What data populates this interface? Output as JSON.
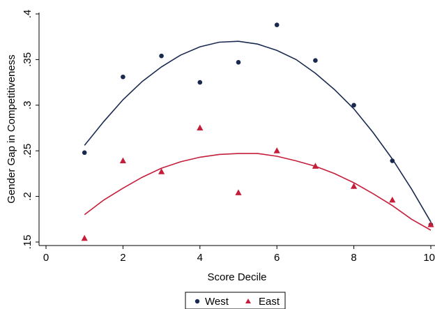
{
  "chart_data": {
    "type": "scatter",
    "title": "",
    "xlabel": "Score Decile",
    "ylabel": "Gender Gap in Competitiveness",
    "xlim": [
      0,
      10
    ],
    "ylim": [
      0.15,
      0.4
    ],
    "xticks": [
      0,
      2,
      4,
      6,
      8,
      10
    ],
    "xtick_labels": [
      "0",
      "2",
      "4",
      "6",
      "8",
      "10"
    ],
    "yticks": [
      0.15,
      0.2,
      0.25,
      0.3,
      0.35,
      0.4
    ],
    "ytick_labels": [
      ".15",
      ".2",
      ".25",
      ".3",
      ".35",
      ".4"
    ],
    "grid": false,
    "legend_position": "bottom",
    "series": [
      {
        "name": "West",
        "marker": "circle",
        "color": "#1a2a4f",
        "x": [
          1,
          2,
          3,
          4,
          5,
          6,
          7,
          8,
          9,
          10
        ],
        "y": [
          0.248,
          0.331,
          0.354,
          0.325,
          0.347,
          0.388,
          0.349,
          0.3,
          0.239,
          0.169
        ],
        "fit": {
          "type": "quadratic",
          "x": [
            1,
            1.5,
            2,
            2.5,
            3,
            3.5,
            4,
            4.5,
            5,
            5.5,
            6,
            6.5,
            7,
            7.5,
            8,
            8.5,
            9,
            9.5,
            10
          ],
          "y": [
            0.256,
            0.282,
            0.306,
            0.326,
            0.342,
            0.355,
            0.364,
            0.369,
            0.37,
            0.367,
            0.36,
            0.35,
            0.335,
            0.317,
            0.296,
            0.27,
            0.241,
            0.208,
            0.172
          ]
        }
      },
      {
        "name": "East",
        "marker": "triangle",
        "color": "#c41e3a",
        "x": [
          1,
          2,
          3,
          4,
          5,
          6,
          7,
          8,
          9,
          10
        ],
        "y": [
          0.154,
          0.239,
          0.227,
          0.275,
          0.204,
          0.25,
          0.233,
          0.211,
          0.196,
          0.169
        ],
        "fit": {
          "type": "quadratic",
          "x": [
            1,
            1.5,
            2,
            2.5,
            3,
            3.5,
            4,
            4.5,
            5,
            5.5,
            6,
            6.5,
            7,
            7.5,
            8,
            8.5,
            9,
            9.5,
            10
          ],
          "y": [
            0.18,
            0.196,
            0.209,
            0.221,
            0.231,
            0.238,
            0.243,
            0.246,
            0.247,
            0.247,
            0.244,
            0.239,
            0.233,
            0.225,
            0.215,
            0.203,
            0.19,
            0.175,
            0.163
          ]
        }
      }
    ]
  }
}
